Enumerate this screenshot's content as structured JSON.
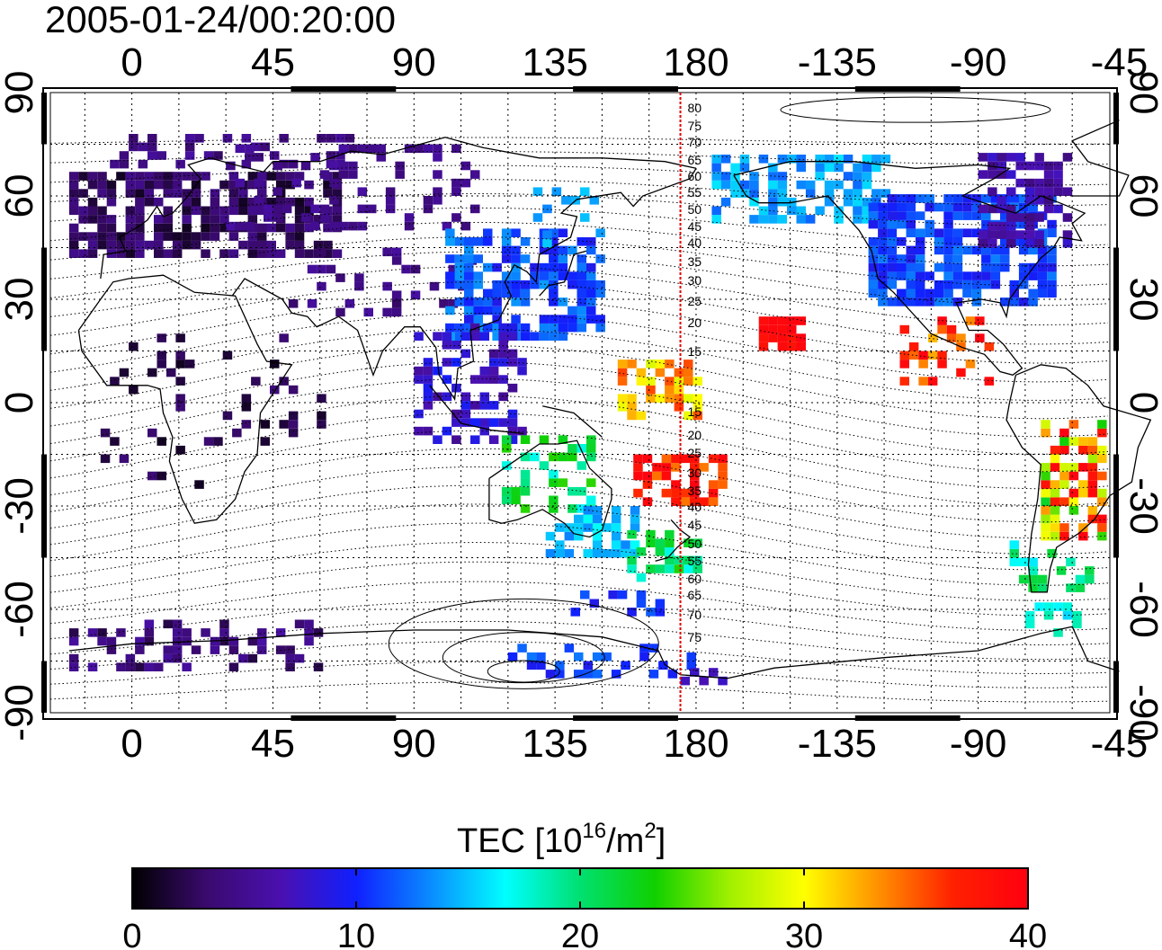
{
  "title": "2005-01-24/00:20:00",
  "map": {
    "top_lon_labels": [
      "0",
      "45",
      "90",
      "135",
      "180",
      "-135",
      "-90",
      "-45"
    ],
    "bottom_lon_labels": [
      "0",
      "45",
      "90",
      "135",
      "180",
      "-135",
      "-90",
      "-45"
    ],
    "left_lat_labels": [
      "90",
      "60",
      "30",
      "0",
      "-30",
      "-60",
      "-90"
    ],
    "right_lat_labels": [
      "90",
      "60",
      "30",
      "0",
      "-30",
      "-60",
      "-90"
    ],
    "meridian_lon": 175,
    "meridian_north_labels": [
      "80",
      "75",
      "70",
      "65",
      "60",
      "55",
      "50",
      "45",
      "40",
      "35",
      "30",
      "25",
      "20",
      "15"
    ],
    "meridian_south_labels": [
      "15",
      "20",
      "25",
      "30",
      "35",
      "40",
      "45",
      "50",
      "55",
      "60",
      "65",
      "70",
      "75"
    ],
    "meridian_color": "#e00000",
    "grid": true
  },
  "colorbar": {
    "label_main": "TEC  [10",
    "label_sup": "16",
    "label_mid": "/m",
    "label_sup2": "2",
    "label_end": "]",
    "ticks": [
      "0",
      "10",
      "20",
      "30",
      "40"
    ],
    "range": [
      0,
      40
    ],
    "colors": [
      "#000000",
      "#3a0a6e",
      "#4a10b0",
      "#1020ff",
      "#0a8cff",
      "#00ffff",
      "#00e070",
      "#10d000",
      "#a0f000",
      "#ffff00",
      "#ff9000",
      "#ff2000",
      "#ff0010"
    ]
  }
}
